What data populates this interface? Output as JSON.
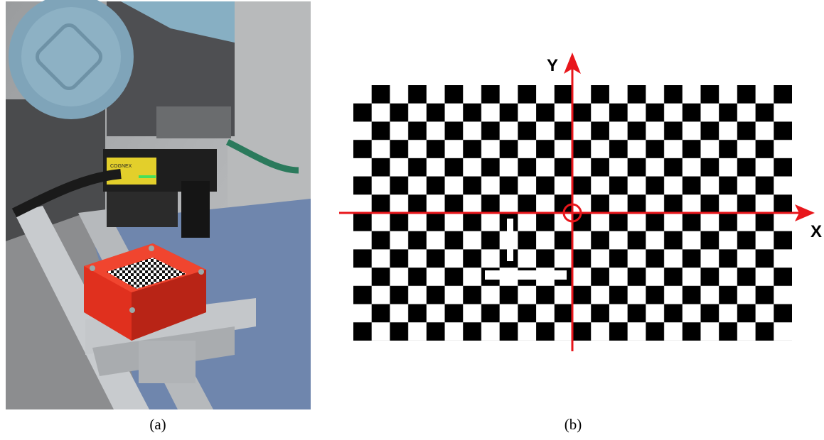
{
  "figure": {
    "panels": [
      {
        "label": "(a)",
        "camera_brand": "COGNEX"
      },
      {
        "label": "(b)",
        "axes": {
          "x": "X",
          "y": "Y"
        }
      }
    ]
  }
}
